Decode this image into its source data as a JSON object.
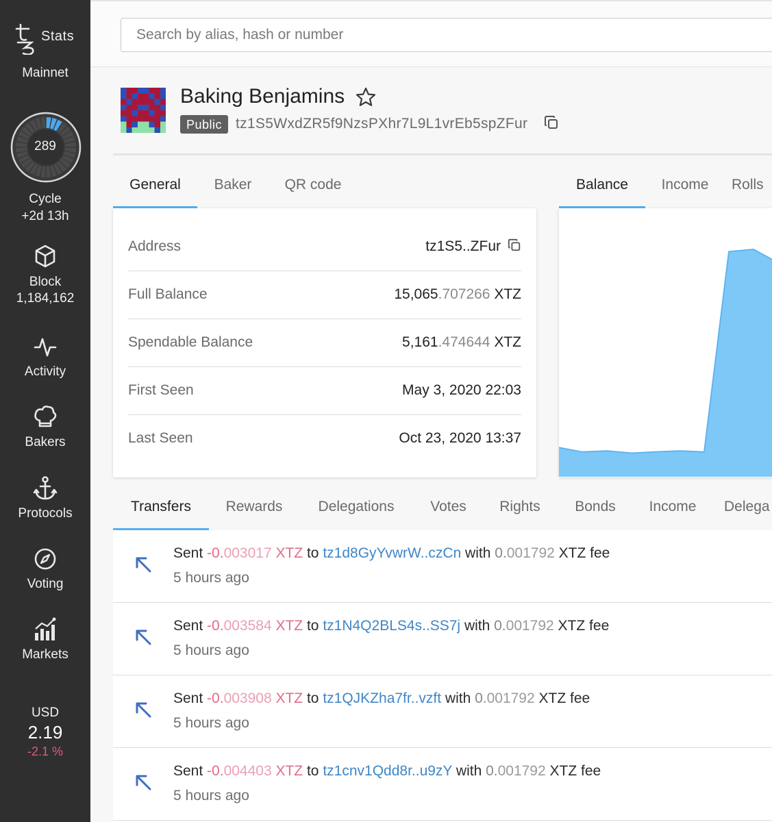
{
  "sidebar": {
    "brand": "Stats",
    "network": "Mainnet",
    "cycle": {
      "number": "289",
      "label": "Cycle",
      "remaining": "+2d 13h",
      "progress": 0.08
    },
    "nav": [
      {
        "id": "block",
        "label": "Block",
        "sub": "1,184,162",
        "icon": "cube-icon"
      },
      {
        "id": "activity",
        "label": "Activity",
        "icon": "activity-icon"
      },
      {
        "id": "bakers",
        "label": "Bakers",
        "icon": "chef-hat-icon"
      },
      {
        "id": "protocols",
        "label": "Protocols",
        "icon": "anchor-icon"
      },
      {
        "id": "voting",
        "label": "Voting",
        "icon": "compass-icon"
      },
      {
        "id": "markets",
        "label": "Markets",
        "icon": "bar-chart-icon"
      }
    ],
    "ticker": {
      "currency": "USD",
      "price": "2.19",
      "change": "-2.1 %"
    }
  },
  "search": {
    "placeholder": "Search by alias, hash or number"
  },
  "account": {
    "name": "Baking Benjamins",
    "badge": "Public",
    "address": "tz1S5WxdZR5f9NzsPXhr7L9L1vrEb5spZFur"
  },
  "info_tabs": [
    "General",
    "Baker",
    "QR code"
  ],
  "chart_tabs": [
    "Balance",
    "Income",
    "Rolls"
  ],
  "info": {
    "address": {
      "key": "Address",
      "value": "tz1S5..ZFur"
    },
    "full_balance": {
      "key": "Full Balance",
      "int": "15,065",
      "dec": ".707266",
      "unit": " XTZ"
    },
    "spendable_balance": {
      "key": "Spendable Balance",
      "int": "5,161",
      "dec": ".474644",
      "unit": " XTZ"
    },
    "first_seen": {
      "key": "First Seen",
      "value": "May 3, 2020 22:03"
    },
    "last_seen": {
      "key": "Last Seen",
      "value": "Oct 23, 2020 13:37"
    }
  },
  "chart_data": {
    "type": "area",
    "values": [
      0.13,
      0.11,
      0.115,
      0.105,
      0.11,
      0.115,
      0.11,
      1.0,
      1.01,
      0.95
    ],
    "color": "#7ec8f8",
    "stroke": "#5db5f0"
  },
  "list_tabs": [
    "Transfers",
    "Rewards",
    "Delegations",
    "Votes",
    "Rights",
    "Bonds",
    "Income",
    "Delega"
  ],
  "transfers": [
    {
      "verb": "Sent ",
      "sign": "-0.",
      "amount": "003017",
      "unit": " XTZ",
      "to": " to ",
      "addr": "tz1d8GyYvwrW..czCn",
      "with": " with ",
      "fee_int": "0.",
      "fee_dec": "001792",
      "fee_unit": " XTZ fee",
      "time": "5 hours ago"
    },
    {
      "verb": "Sent ",
      "sign": "-0.",
      "amount": "003584",
      "unit": " XTZ",
      "to": " to ",
      "addr": "tz1N4Q2BLS4s..SS7j",
      "with": " with ",
      "fee_int": "0.",
      "fee_dec": "001792",
      "fee_unit": " XTZ fee",
      "time": "5 hours ago"
    },
    {
      "verb": "Sent ",
      "sign": "-0.",
      "amount": "003908",
      "unit": " XTZ",
      "to": " to ",
      "addr": "tz1QJKZha7fr..vzft",
      "with": " with ",
      "fee_int": "0.",
      "fee_dec": "001792",
      "fee_unit": " XTZ fee",
      "time": "5 hours ago"
    },
    {
      "verb": "Sent ",
      "sign": "-0.",
      "amount": "004403",
      "unit": " XTZ",
      "to": " to ",
      "addr": "tz1cnv1Qdd8r..u9zY",
      "with": " with ",
      "fee_int": "0.",
      "fee_dec": "001792",
      "fee_unit": " XTZ fee",
      "time": "5 hours ago"
    }
  ]
}
